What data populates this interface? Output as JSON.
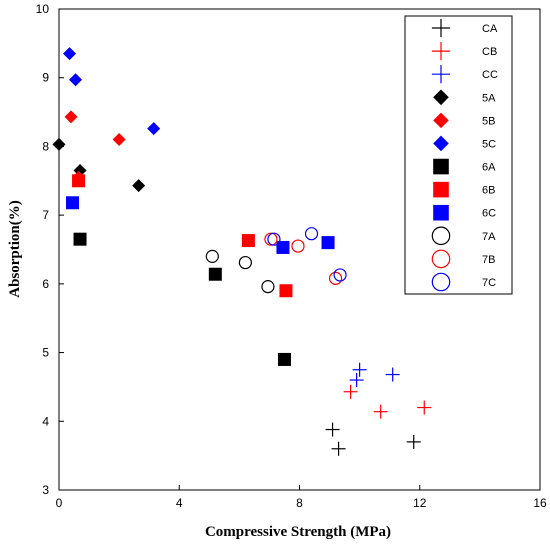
{
  "chart_data": {
    "type": "scatter",
    "xlabel": "Compressive Strength (MPa)",
    "ylabel": "Absorption(%)",
    "xlim": [
      0,
      16
    ],
    "ylim": [
      3,
      10
    ],
    "xticks": [
      0,
      4,
      8,
      12,
      16
    ],
    "yticks": [
      3,
      4,
      5,
      6,
      7,
      8,
      9,
      10
    ],
    "grid": false,
    "legend_position": "top-right",
    "series": [
      {
        "name": "CA",
        "marker": "plus",
        "color": "#000000",
        "points": [
          [
            9.1,
            3.88
          ],
          [
            9.3,
            3.6
          ],
          [
            11.8,
            3.7
          ]
        ]
      },
      {
        "name": "CB",
        "marker": "plus",
        "color": "#ff0000",
        "points": [
          [
            9.7,
            4.43
          ],
          [
            10.7,
            4.14
          ],
          [
            12.15,
            4.2
          ]
        ]
      },
      {
        "name": "CC",
        "marker": "plus",
        "color": "#0000ff",
        "points": [
          [
            9.9,
            4.6
          ],
          [
            10.0,
            4.75
          ],
          [
            11.1,
            4.68
          ]
        ]
      },
      {
        "name": "5A",
        "marker": "diamond",
        "color": "#000000",
        "points": [
          [
            0.0,
            8.03
          ],
          [
            0.7,
            7.65
          ],
          [
            2.65,
            7.43
          ]
        ]
      },
      {
        "name": "5B",
        "marker": "diamond",
        "color": "#ff0000",
        "points": [
          [
            0.4,
            8.43
          ],
          [
            0.65,
            7.55
          ],
          [
            2.0,
            8.1
          ]
        ]
      },
      {
        "name": "5C",
        "marker": "diamond",
        "color": "#0000ff",
        "points": [
          [
            0.35,
            9.35
          ],
          [
            0.55,
            8.97
          ],
          [
            3.15,
            8.26
          ]
        ]
      },
      {
        "name": "6A",
        "marker": "square",
        "color": "#000000",
        "points": [
          [
            0.7,
            6.65
          ],
          [
            5.2,
            6.14
          ],
          [
            7.5,
            4.9
          ]
        ]
      },
      {
        "name": "6B",
        "marker": "square",
        "color": "#ff0000",
        "points": [
          [
            0.65,
            7.5
          ],
          [
            6.3,
            6.63
          ],
          [
            7.55,
            5.9
          ]
        ]
      },
      {
        "name": "6C",
        "marker": "square",
        "color": "#0000ff",
        "points": [
          [
            0.45,
            7.18
          ],
          [
            7.45,
            6.53
          ],
          [
            8.95,
            6.6
          ]
        ]
      },
      {
        "name": "7A",
        "marker": "circle",
        "color": "#000000",
        "points": [
          [
            5.1,
            6.4
          ],
          [
            6.2,
            6.31
          ],
          [
            6.95,
            5.96
          ]
        ]
      },
      {
        "name": "7B",
        "marker": "circle",
        "color": "#ff0000",
        "points": [
          [
            7.05,
            6.65
          ],
          [
            7.95,
            6.55
          ],
          [
            9.2,
            6.08
          ]
        ]
      },
      {
        "name": "7C",
        "marker": "circle",
        "color": "#0000ff",
        "points": [
          [
            7.15,
            6.65
          ],
          [
            8.4,
            6.73
          ],
          [
            9.35,
            6.13
          ]
        ]
      }
    ]
  }
}
